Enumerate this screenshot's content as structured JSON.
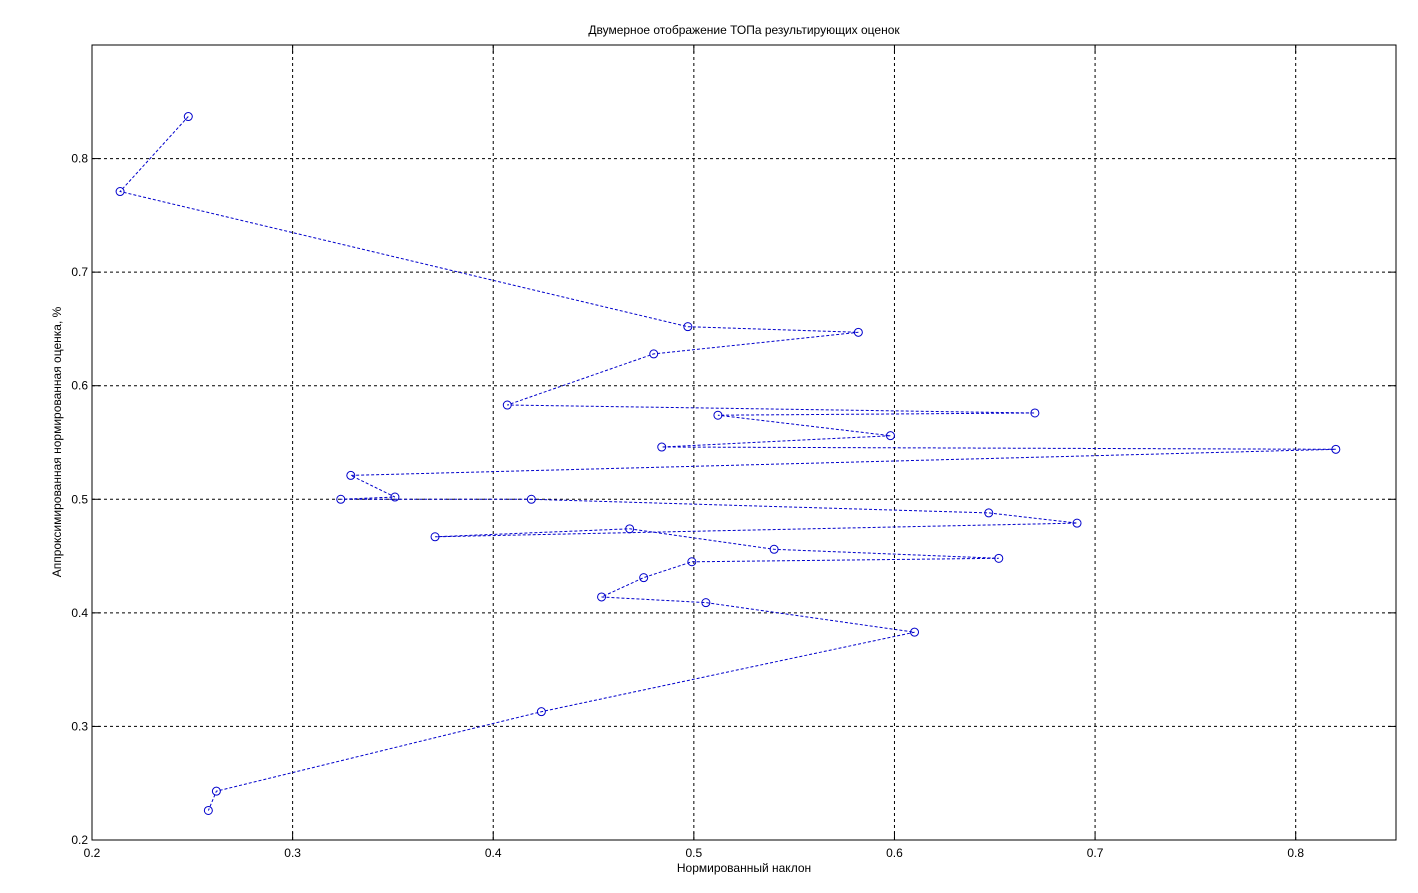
{
  "chart_data": {
    "type": "line",
    "title": "Двумерное отображение ТОПа результирующих оценок",
    "xlabel": "Нормированный наклон",
    "ylabel": "Аппроксимированная нормированная оценка, %",
    "xlim": [
      0.2,
      0.85
    ],
    "ylim": [
      0.2,
      0.9
    ],
    "xticks": [
      0.2,
      0.3,
      0.4,
      0.5,
      0.6,
      0.7,
      0.8
    ],
    "yticks": [
      0.2,
      0.3,
      0.4,
      0.5,
      0.6,
      0.7,
      0.8
    ],
    "xtick_labels": [
      "0.2",
      "0.3",
      "0.4",
      "0.5",
      "0.6",
      "0.7",
      "0.8"
    ],
    "ytick_labels": [
      "0.2",
      "0.3",
      "0.4",
      "0.5",
      "0.6",
      "0.7",
      "0.8"
    ],
    "grid": true,
    "line_style": "dashed",
    "marker": "circle",
    "color": "#0000cc",
    "x": [
      0.248,
      0.214,
      0.497,
      0.582,
      0.48,
      0.407,
      0.67,
      0.512,
      0.598,
      0.484,
      0.82,
      0.329,
      0.351,
      0.324,
      0.419,
      0.647,
      0.691,
      0.371,
      0.468,
      0.54,
      0.652,
      0.499,
      0.475,
      0.454,
      0.506,
      0.61,
      0.424,
      0.262,
      0.258
    ],
    "y": [
      0.837,
      0.771,
      0.652,
      0.647,
      0.628,
      0.583,
      0.576,
      0.574,
      0.556,
      0.546,
      0.544,
      0.521,
      0.502,
      0.5,
      0.5,
      0.488,
      0.479,
      0.467,
      0.474,
      0.456,
      0.448,
      0.445,
      0.431,
      0.414,
      0.409,
      0.383,
      0.313,
      0.243,
      0.226
    ]
  }
}
